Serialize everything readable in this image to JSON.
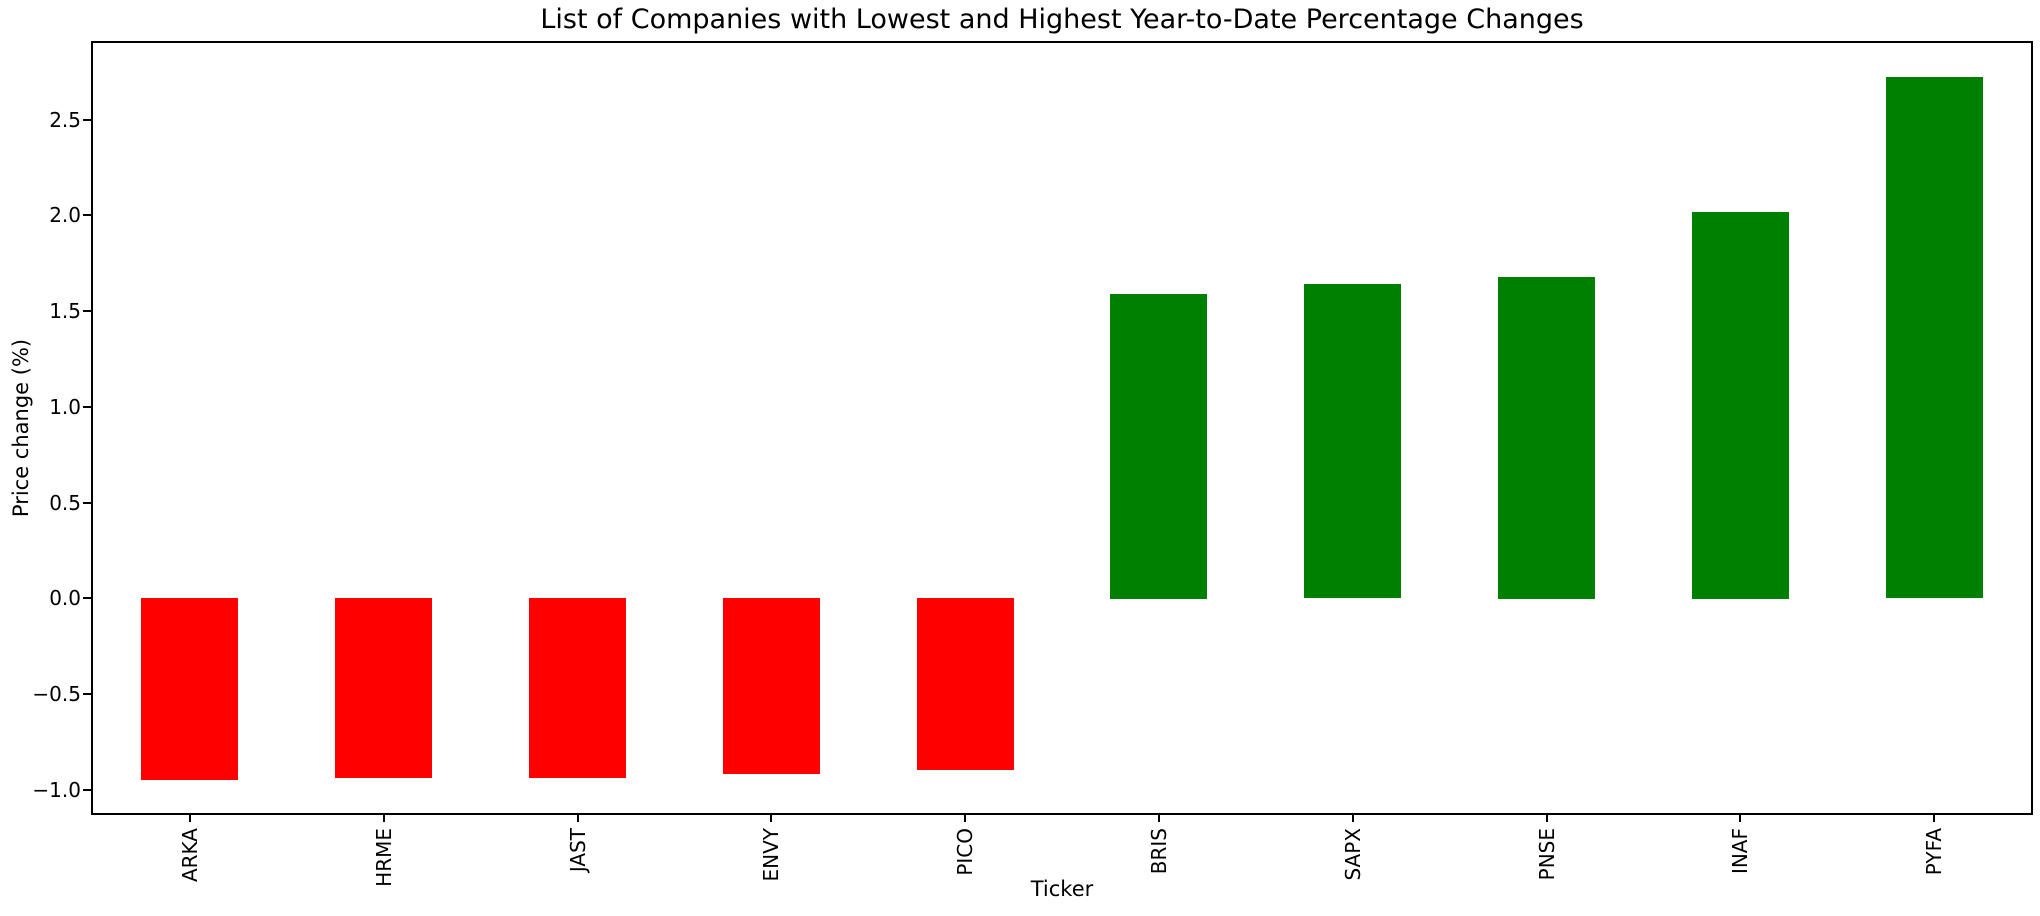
{
  "chart_data": {
    "type": "bar",
    "title": "List of Companies with Lowest and Highest Year-to-Date Percentage Changes",
    "xlabel": "Ticker",
    "ylabel": "Price change (%)",
    "categories": [
      "ARKA",
      "HRME",
      "JAST",
      "ENVY",
      "PICO",
      "BRIS",
      "SAPX",
      "PNSE",
      "INAF",
      "PYFA"
    ],
    "values": [
      -0.95,
      -0.94,
      -0.94,
      -0.92,
      -0.9,
      1.59,
      1.64,
      1.68,
      2.02,
      2.72
    ],
    "bar_color_by_sign": {
      "negative": "#ff0000",
      "positive": "#008000"
    },
    "yticks": [
      2.5,
      2.0,
      1.5,
      1.0,
      0.5,
      0.0,
      -0.5,
      -1.0
    ],
    "ytick_labels": [
      "2.5",
      "2.0",
      "1.5",
      "1.0",
      "0.5",
      "0.0",
      "−0.5",
      "−1.0"
    ],
    "ylim": [
      -1.12,
      2.9
    ],
    "grid": false,
    "legend": false,
    "axis_color": "#000000",
    "background_color": "#ffffff"
  }
}
